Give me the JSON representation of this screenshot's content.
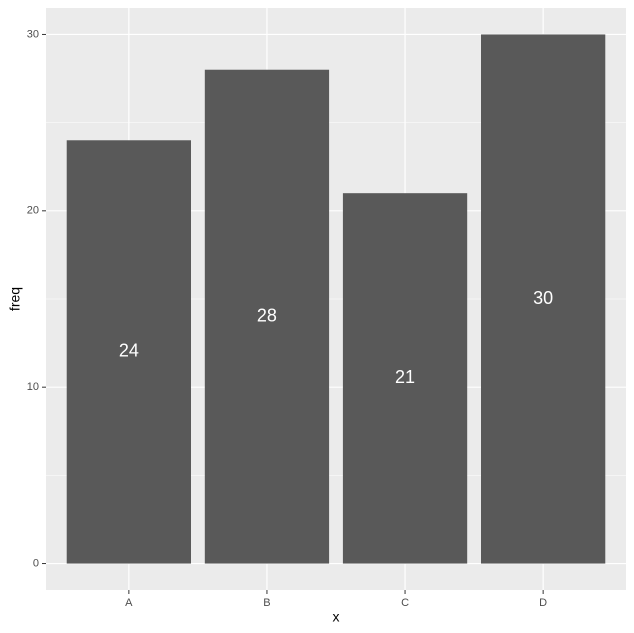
{
  "chart_data": {
    "type": "bar",
    "x_label": "x",
    "y_label": "freq",
    "categories": [
      "A",
      "B",
      "C",
      "D"
    ],
    "values": [
      24,
      28,
      21,
      30
    ],
    "color": "#595959",
    "label_color": "#ffffff",
    "ylim": [
      -1.5,
      31.5
    ],
    "yticks": [
      0,
      10,
      20,
      30
    ],
    "y_minor_grid": [
      5,
      15,
      25
    ],
    "grid": true
  }
}
